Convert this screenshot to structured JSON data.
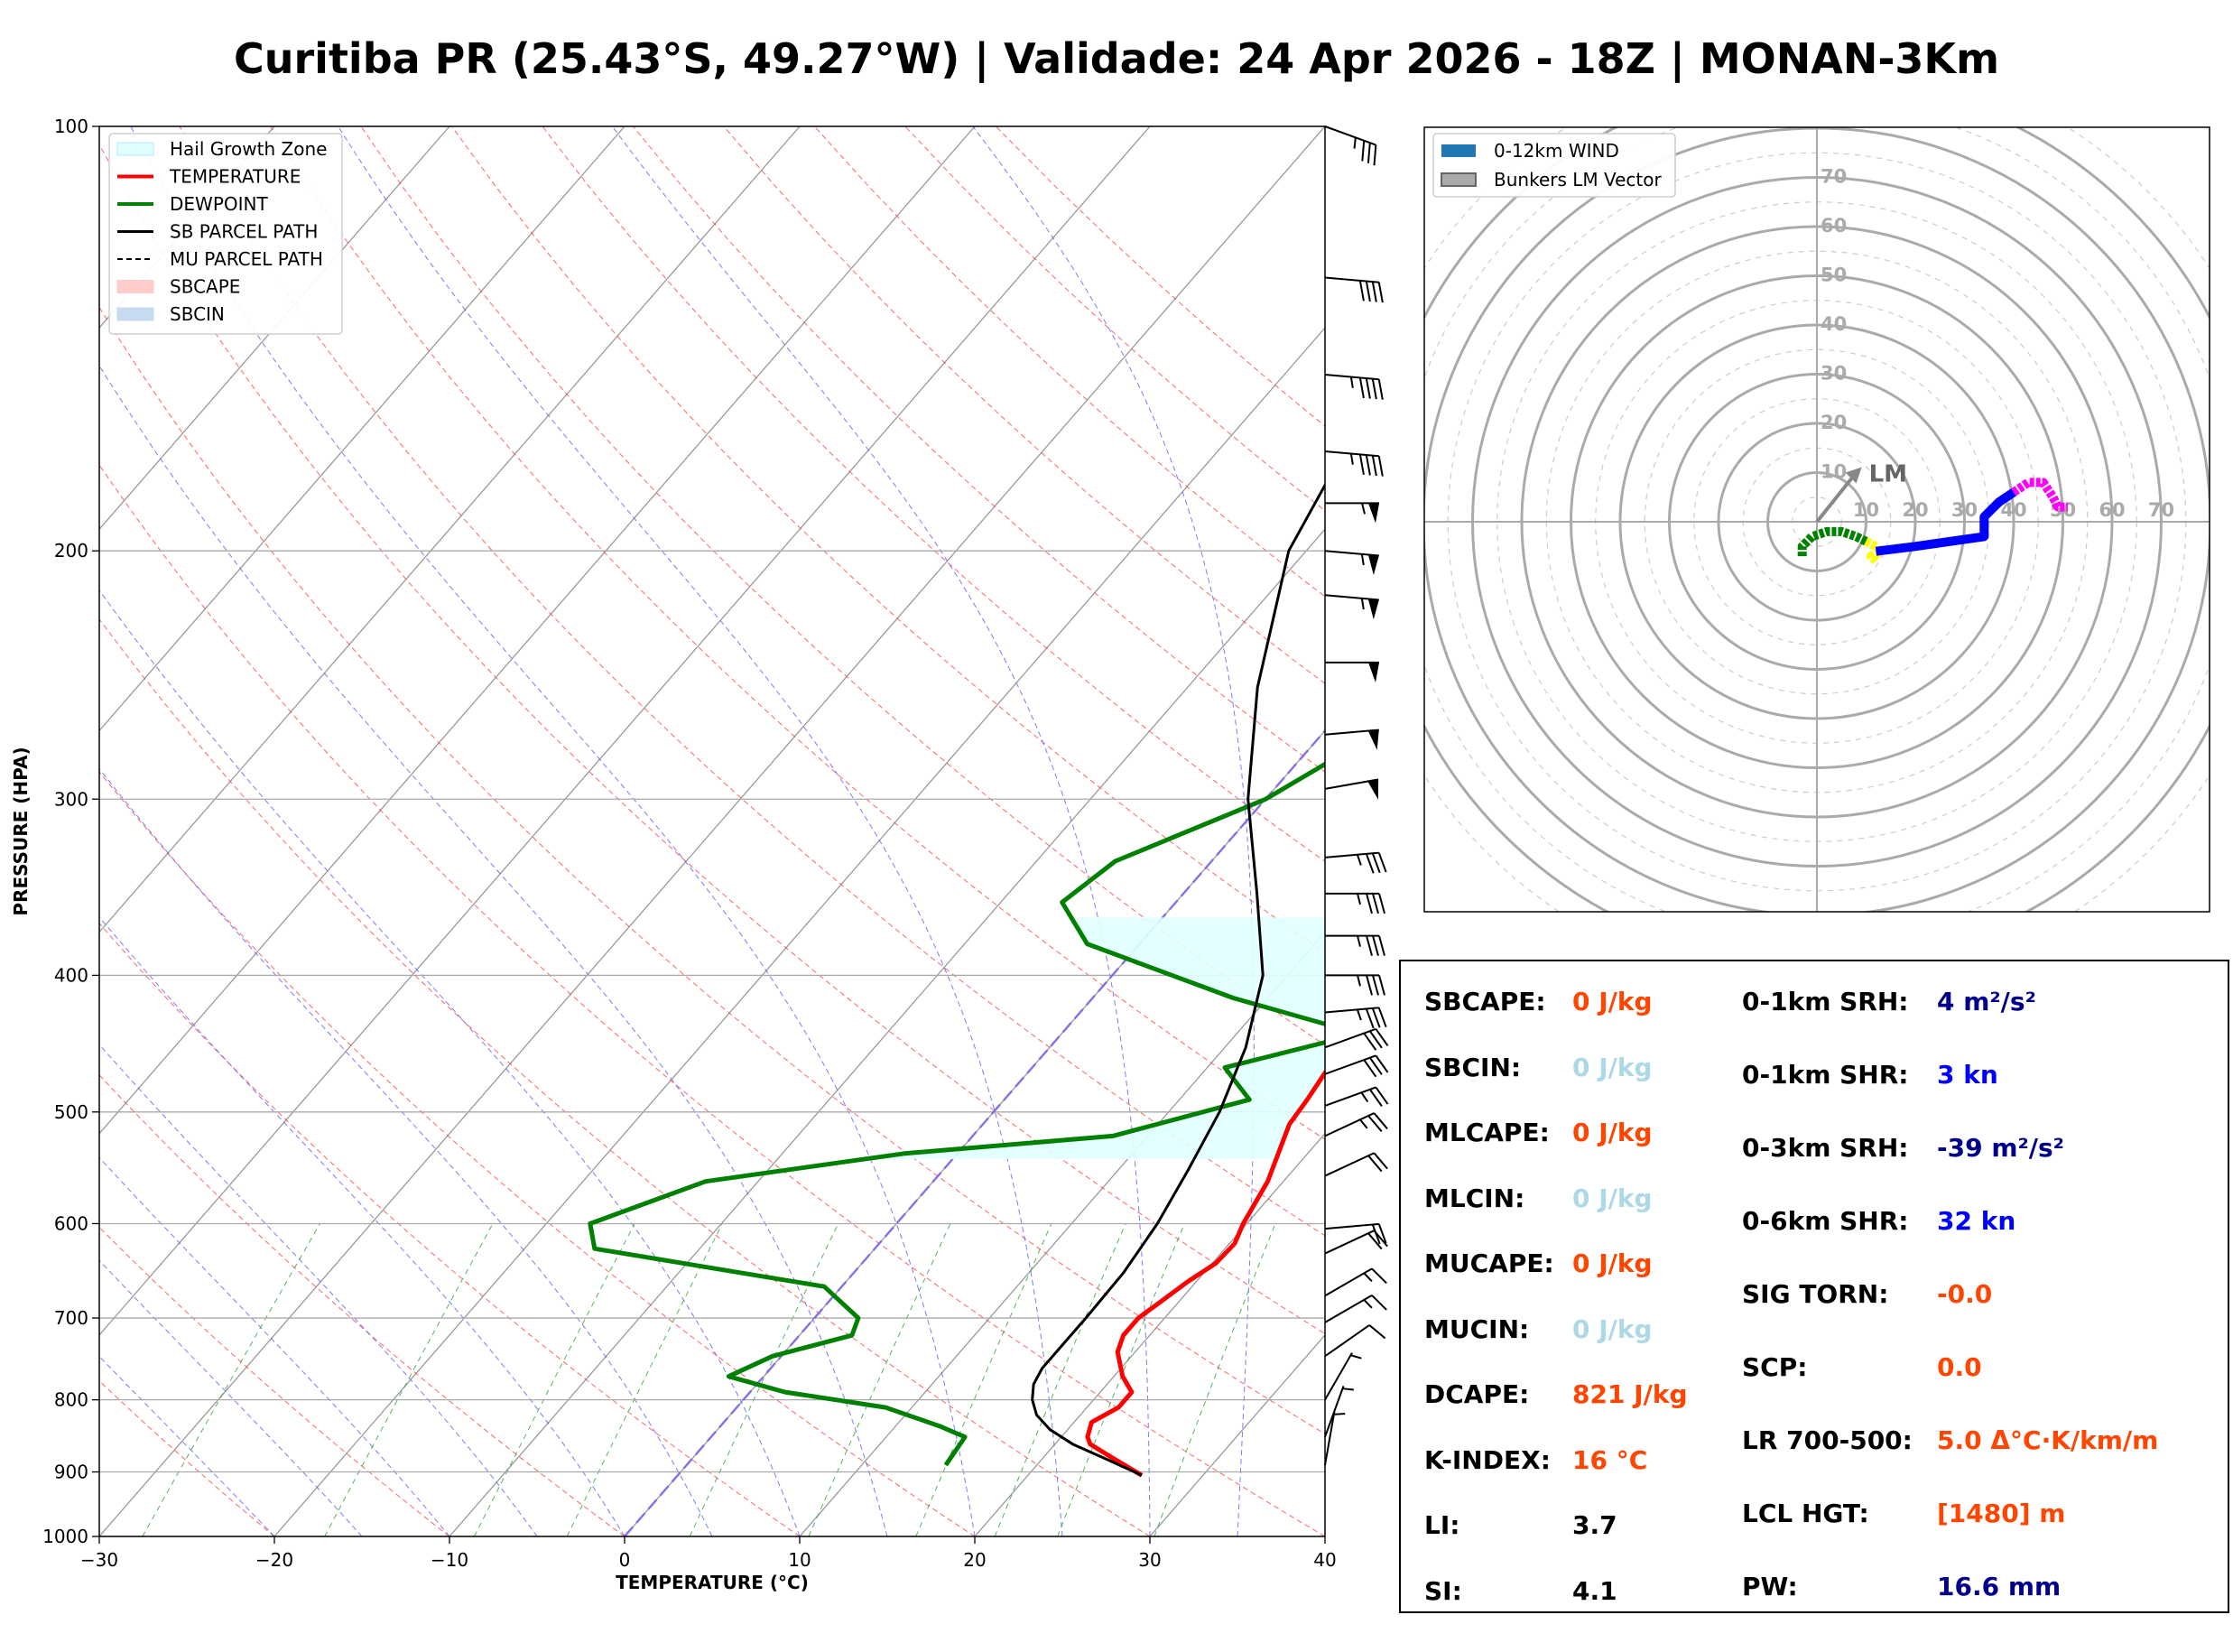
{
  "title": "Curitiba PR (25.43°S, 49.27°W) | Validade: 24 Apr 2026 - 18Z | MONAN-3Km",
  "colors": {
    "temperature": "#ff0000",
    "dewpoint": "#008000",
    "parcel": "#000000",
    "hail_zone": "#e0ffff",
    "value_orange": "#ff4500",
    "value_lightblue": "#add8e6",
    "value_navy": "#00008b",
    "value_blue": "#0000ff",
    "value_black": "#000000"
  },
  "chart_data": [
    {
      "type": "line",
      "subtype": "skew-t log-p",
      "xlabel": "TEMPERATURE (°C)",
      "ylabel": "PRESSURE (HPA)",
      "xlim": [
        -30,
        40
      ],
      "ylim": [
        1000,
        100
      ],
      "y_scale": "log",
      "grid": true,
      "x_ticks": [
        "−30",
        "−20",
        "−10",
        "0",
        "10",
        "20",
        "30",
        "40"
      ],
      "y_ticks": [
        "1000",
        "900",
        "800",
        "700",
        "600",
        "500",
        "400",
        "300",
        "200",
        "100"
      ],
      "legend_position": "top-left",
      "legend": [
        "Hail Growth Zone",
        "TEMPERATURE",
        "DEWPOINT",
        "SB PARCEL PATH",
        "MU PARCEL PATH",
        "SBCAPE",
        "SBCIN"
      ],
      "series": [
        {
          "name": "TEMPERATURE",
          "points": [
            [
              905,
              26.5
            ],
            [
              880,
              24
            ],
            [
              860,
              22
            ],
            [
              850,
              21.5
            ],
            [
              830,
              21
            ],
            [
              810,
              21.8
            ],
            [
              790,
              21.8
            ],
            [
              770,
              20.5
            ],
            [
              740,
              19
            ],
            [
              720,
              18.5
            ],
            [
              700,
              18.5
            ],
            [
              680,
              19
            ],
            [
              660,
              19.5
            ],
            [
              640,
              20.2
            ],
            [
              620,
              20.3
            ],
            [
              600,
              19.8
            ],
            [
              560,
              19.1
            ],
            [
              510,
              17.5
            ],
            [
              490,
              17.3
            ],
            [
              470,
              17
            ],
            [
              450,
              16.7
            ],
            [
              430,
              16.5
            ],
            [
              405,
              16
            ],
            [
              390,
              16
            ],
            [
              370,
              15.3
            ],
            [
              340,
              13.7
            ],
            [
              310,
              11.8
            ],
            [
              280,
              9.7
            ],
            [
              250,
              7.1
            ],
            [
              225,
              5.3
            ],
            [
              200,
              4.8
            ],
            [
              185,
              4.3
            ],
            [
              170,
              4
            ],
            [
              150,
              4.1
            ],
            [
              140,
              4.9
            ],
            [
              128,
              6
            ],
            [
              118,
              7
            ],
            [
              110,
              8.2
            ],
            [
              100,
              9.2
            ]
          ]
        },
        {
          "name": "DEWPOINT",
          "points": [
            [
              890,
              14.8
            ],
            [
              850,
              14.5
            ],
            [
              835,
              12.5
            ],
            [
              810,
              8.5
            ],
            [
              790,
              2
            ],
            [
              770,
              -2
            ],
            [
              745,
              -0.5
            ],
            [
              720,
              3
            ],
            [
              700,
              2.5
            ],
            [
              665,
              -1
            ],
            [
              625,
              -16
            ],
            [
              600,
              -17.5
            ],
            [
              560,
              -13
            ],
            [
              535,
              -3
            ],
            [
              520,
              8
            ],
            [
              490,
              14
            ],
            [
              465,
              11
            ],
            [
              440,
              17
            ],
            [
              415,
              8
            ],
            [
              380,
              -3
            ],
            [
              355,
              -6.5
            ],
            [
              332,
              -5.5
            ],
            [
              300,
              0
            ],
            [
              280,
              2
            ],
            [
              265,
              2.5
            ],
            [
              250,
              5.5
            ],
            [
              225,
              12
            ],
            [
              210,
              15
            ],
            [
              185,
              16
            ],
            [
              170,
              16
            ],
            [
              150,
              17
            ],
            [
              140,
              19
            ],
            [
              127,
              20.5
            ],
            [
              115,
              23.5
            ],
            [
              100,
              29
            ]
          ]
        },
        {
          "name": "SB PARCEL PATH",
          "points": [
            [
              905,
              26.5
            ],
            [
              880,
              23.5
            ],
            [
              860,
              21
            ],
            [
              840,
              19
            ],
            [
              820,
              17.5
            ],
            [
              800,
              16.5
            ],
            [
              780,
              15.8
            ],
            [
              760,
              15.5
            ],
            [
              730,
              15.5
            ],
            [
              700,
              15.5
            ],
            [
              650,
              15.4
            ],
            [
              600,
              14.9
            ],
            [
              550,
              14
            ],
            [
              500,
              12.9
            ],
            [
              450,
              11.2
            ],
            [
              400,
              8.6
            ],
            [
              350,
              4.2
            ],
            [
              300,
              -1
            ],
            [
              250,
              -6
            ],
            [
              200,
              -11
            ],
            [
              170,
              -12.8
            ],
            [
              150,
              -13.8
            ],
            [
              140,
              -14
            ],
            [
              125,
              -14.5
            ],
            [
              110,
              -14.8
            ],
            [
              100,
              -15
            ]
          ]
        }
      ],
      "hail_growth_zone": {
        "p_bottom": 540,
        "p_top": 362
      },
      "wind_barbs": [
        {
          "p": 100,
          "speed_kt": 35,
          "dir_deg": 290
        },
        {
          "p": 128,
          "speed_kt": 40,
          "dir_deg": 275
        },
        {
          "p": 150,
          "speed_kt": 45,
          "dir_deg": 275
        },
        {
          "p": 170,
          "speed_kt": 45,
          "dir_deg": 275
        },
        {
          "p": 185,
          "speed_kt": 55,
          "dir_deg": 270
        },
        {
          "p": 200,
          "speed_kt": 55,
          "dir_deg": 275
        },
        {
          "p": 215,
          "speed_kt": 55,
          "dir_deg": 275
        },
        {
          "p": 240,
          "speed_kt": 50,
          "dir_deg": 270
        },
        {
          "p": 270,
          "speed_kt": 50,
          "dir_deg": 265
        },
        {
          "p": 295,
          "speed_kt": 50,
          "dir_deg": 260
        },
        {
          "p": 330,
          "speed_kt": 35,
          "dir_deg": 265
        },
        {
          "p": 350,
          "speed_kt": 35,
          "dir_deg": 270
        },
        {
          "p": 375,
          "speed_kt": 35,
          "dir_deg": 270
        },
        {
          "p": 400,
          "speed_kt": 35,
          "dir_deg": 270
        },
        {
          "p": 425,
          "speed_kt": 35,
          "dir_deg": 265
        },
        {
          "p": 450,
          "speed_kt": 30,
          "dir_deg": 250
        },
        {
          "p": 470,
          "speed_kt": 30,
          "dir_deg": 250
        },
        {
          "p": 495,
          "speed_kt": 25,
          "dir_deg": 250
        },
        {
          "p": 520,
          "speed_kt": 25,
          "dir_deg": 245
        },
        {
          "p": 555,
          "speed_kt": 20,
          "dir_deg": 245
        },
        {
          "p": 605,
          "speed_kt": 20,
          "dir_deg": 265
        },
        {
          "p": 630,
          "speed_kt": 20,
          "dir_deg": 245
        },
        {
          "p": 675,
          "speed_kt": 15,
          "dir_deg": 240
        },
        {
          "p": 705,
          "speed_kt": 15,
          "dir_deg": 240
        },
        {
          "p": 745,
          "speed_kt": 10,
          "dir_deg": 235
        },
        {
          "p": 800,
          "speed_kt": 5,
          "dir_deg": 210
        },
        {
          "p": 850,
          "speed_kt": 5,
          "dir_deg": 200
        },
        {
          "p": 890,
          "speed_kt": 5,
          "dir_deg": 190
        }
      ]
    },
    {
      "type": "line",
      "subtype": "hodograph",
      "rings": [
        10,
        20,
        30,
        40,
        50,
        60,
        70
      ],
      "ring_labels": [
        "10",
        "20",
        "30",
        "40",
        "50",
        "60",
        "70"
      ],
      "legend_position": "top-left",
      "legend": [
        "0-12km WIND",
        "Bunkers LM Vector"
      ],
      "lm_label": "LM",
      "lm_vector": [
        8,
        10
      ],
      "series": [
        {
          "color": "#008000",
          "points": [
            [
              -3,
              -7
            ],
            [
              -3,
              -5
            ],
            [
              -1,
              -3
            ],
            [
              2,
              -2
            ],
            [
              5,
              -2
            ],
            [
              8,
              -3
            ],
            [
              10,
              -4
            ]
          ]
        },
        {
          "color": "#ffff00",
          "points": [
            [
              10,
              -4
            ],
            [
              12,
              -5
            ],
            [
              13,
              -6
            ],
            [
              11,
              -7
            ],
            [
              12,
              -8
            ]
          ]
        },
        {
          "color": "#0000ff",
          "points": [
            [
              12,
              -6
            ],
            [
              20,
              -5
            ],
            [
              27,
              -4
            ],
            [
              34,
              -3
            ],
            [
              34,
              1
            ],
            [
              37,
              4
            ],
            [
              40,
              6
            ]
          ]
        },
        {
          "color": "#ff00ff",
          "points": [
            [
              40,
              6
            ],
            [
              43,
              8
            ],
            [
              46,
              8
            ],
            [
              48,
              5
            ],
            [
              49,
              3
            ],
            [
              51,
              3
            ]
          ]
        }
      ]
    }
  ],
  "stats": {
    "left": [
      {
        "label": "SBCAPE:",
        "value": "0 J/kg",
        "color": "orange"
      },
      {
        "label": "SBCIN:",
        "value": "0 J/kg",
        "color": "lightblue"
      },
      {
        "label": "MLCAPE:",
        "value": "0 J/kg",
        "color": "orange"
      },
      {
        "label": "MLCIN:",
        "value": "0 J/kg",
        "color": "lightblue"
      },
      {
        "label": "MUCAPE:",
        "value": "0 J/kg",
        "color": "orange"
      },
      {
        "label": "MUCIN:",
        "value": "0 J/kg",
        "color": "lightblue"
      },
      {
        "label": "DCAPE:",
        "value": "821 J/kg",
        "color": "orange"
      },
      {
        "label": "K-INDEX:",
        "value": "16 °C",
        "color": "orange"
      },
      {
        "label": "LI:",
        "value": "3.7",
        "color": "black"
      },
      {
        "label": "SI:",
        "value": "4.1",
        "color": "black"
      }
    ],
    "right": [
      {
        "label": "0-1km SRH:",
        "value": "4 m²/s²",
        "color": "navy"
      },
      {
        "label": "0-1km SHR:",
        "value": "3 kn",
        "color": "blue"
      },
      {
        "label": "0-3km SRH:",
        "value": "-39 m²/s²",
        "color": "navy"
      },
      {
        "label": "0-6km SHR:",
        "value": "32 kn",
        "color": "blue"
      },
      {
        "label": "SIG TORN:",
        "value": "-0.0",
        "color": "orange"
      },
      {
        "label": "SCP:",
        "value": "0.0",
        "color": "orange"
      },
      {
        "label": "LR 700-500:",
        "value": "5.0 Δ°C·K/km/m",
        "color": "orange"
      },
      {
        "label": "LCL HGT:",
        "value": "[1480] m",
        "color": "orange"
      },
      {
        "label": "PW:",
        "value": "16.6 mm",
        "color": "navy"
      }
    ]
  }
}
